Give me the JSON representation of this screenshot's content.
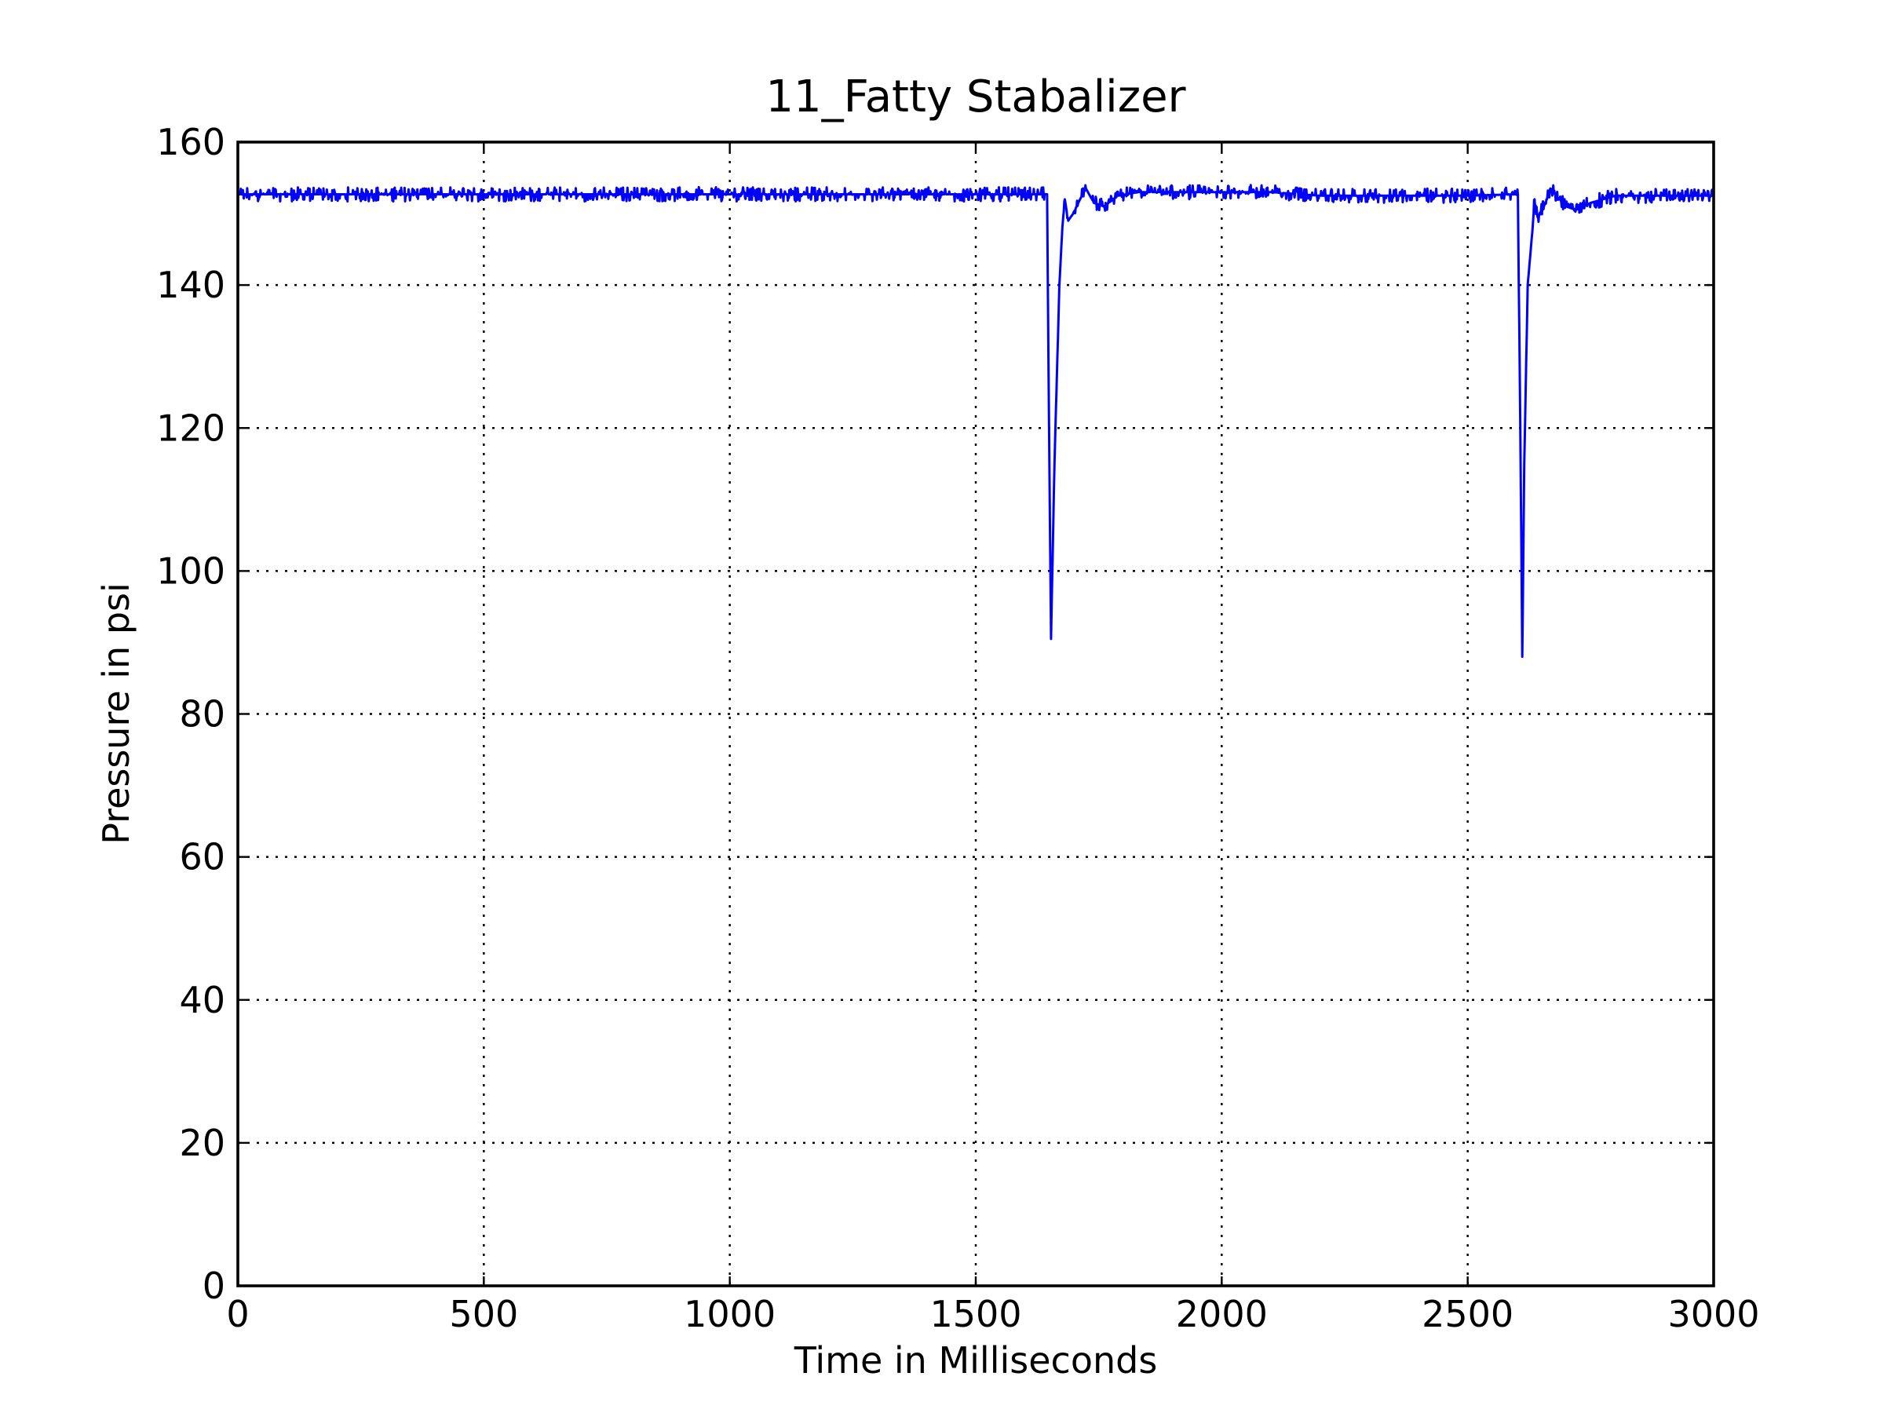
{
  "chart_data": {
    "type": "line",
    "title": "11_Fatty Stabalizer",
    "xlabel": "Time in Milliseconds",
    "ylabel": "Pressure in psi",
    "xlim": [
      0,
      3000
    ],
    "ylim": [
      0,
      160
    ],
    "xticks": [
      "0",
      "500",
      "1000",
      "1500",
      "2000",
      "2500",
      "3000"
    ],
    "yticks": [
      "0",
      "20",
      "40",
      "60",
      "80",
      "100",
      "120",
      "140",
      "160"
    ],
    "grid": true,
    "legend": "none",
    "series": [
      {
        "color": "#0000ff",
        "baseline": 152.7,
        "noise_amplitude": 1.0,
        "x": [
          0,
          1640,
          1645,
          1649,
          1653,
          1660,
          1670,
          1676,
          1681,
          1688,
          1698,
          1712,
          1724,
          1740,
          1760,
          1790,
          1830,
          1900,
          2000,
          2100,
          2200,
          2300,
          2400,
          2500,
          2602,
          2607,
          2611,
          2615,
          2622,
          2632,
          2636,
          2642,
          2655,
          2668,
          2680,
          2700,
          2720,
          2750,
          2800,
          2900,
          3000
        ],
        "y": [
          152.7,
          152.7,
          152.7,
          120,
          90.5,
          115,
          140,
          148,
          152,
          149,
          150,
          152,
          153.5,
          151.5,
          151,
          152.5,
          153,
          153,
          153,
          153,
          152.5,
          152.5,
          152.5,
          152.5,
          152.7,
          120,
          88,
          115,
          140,
          148,
          152,
          149.5,
          151,
          153.5,
          152.5,
          151,
          150.5,
          151.5,
          152.5,
          152.5,
          152.5
        ]
      }
    ]
  }
}
